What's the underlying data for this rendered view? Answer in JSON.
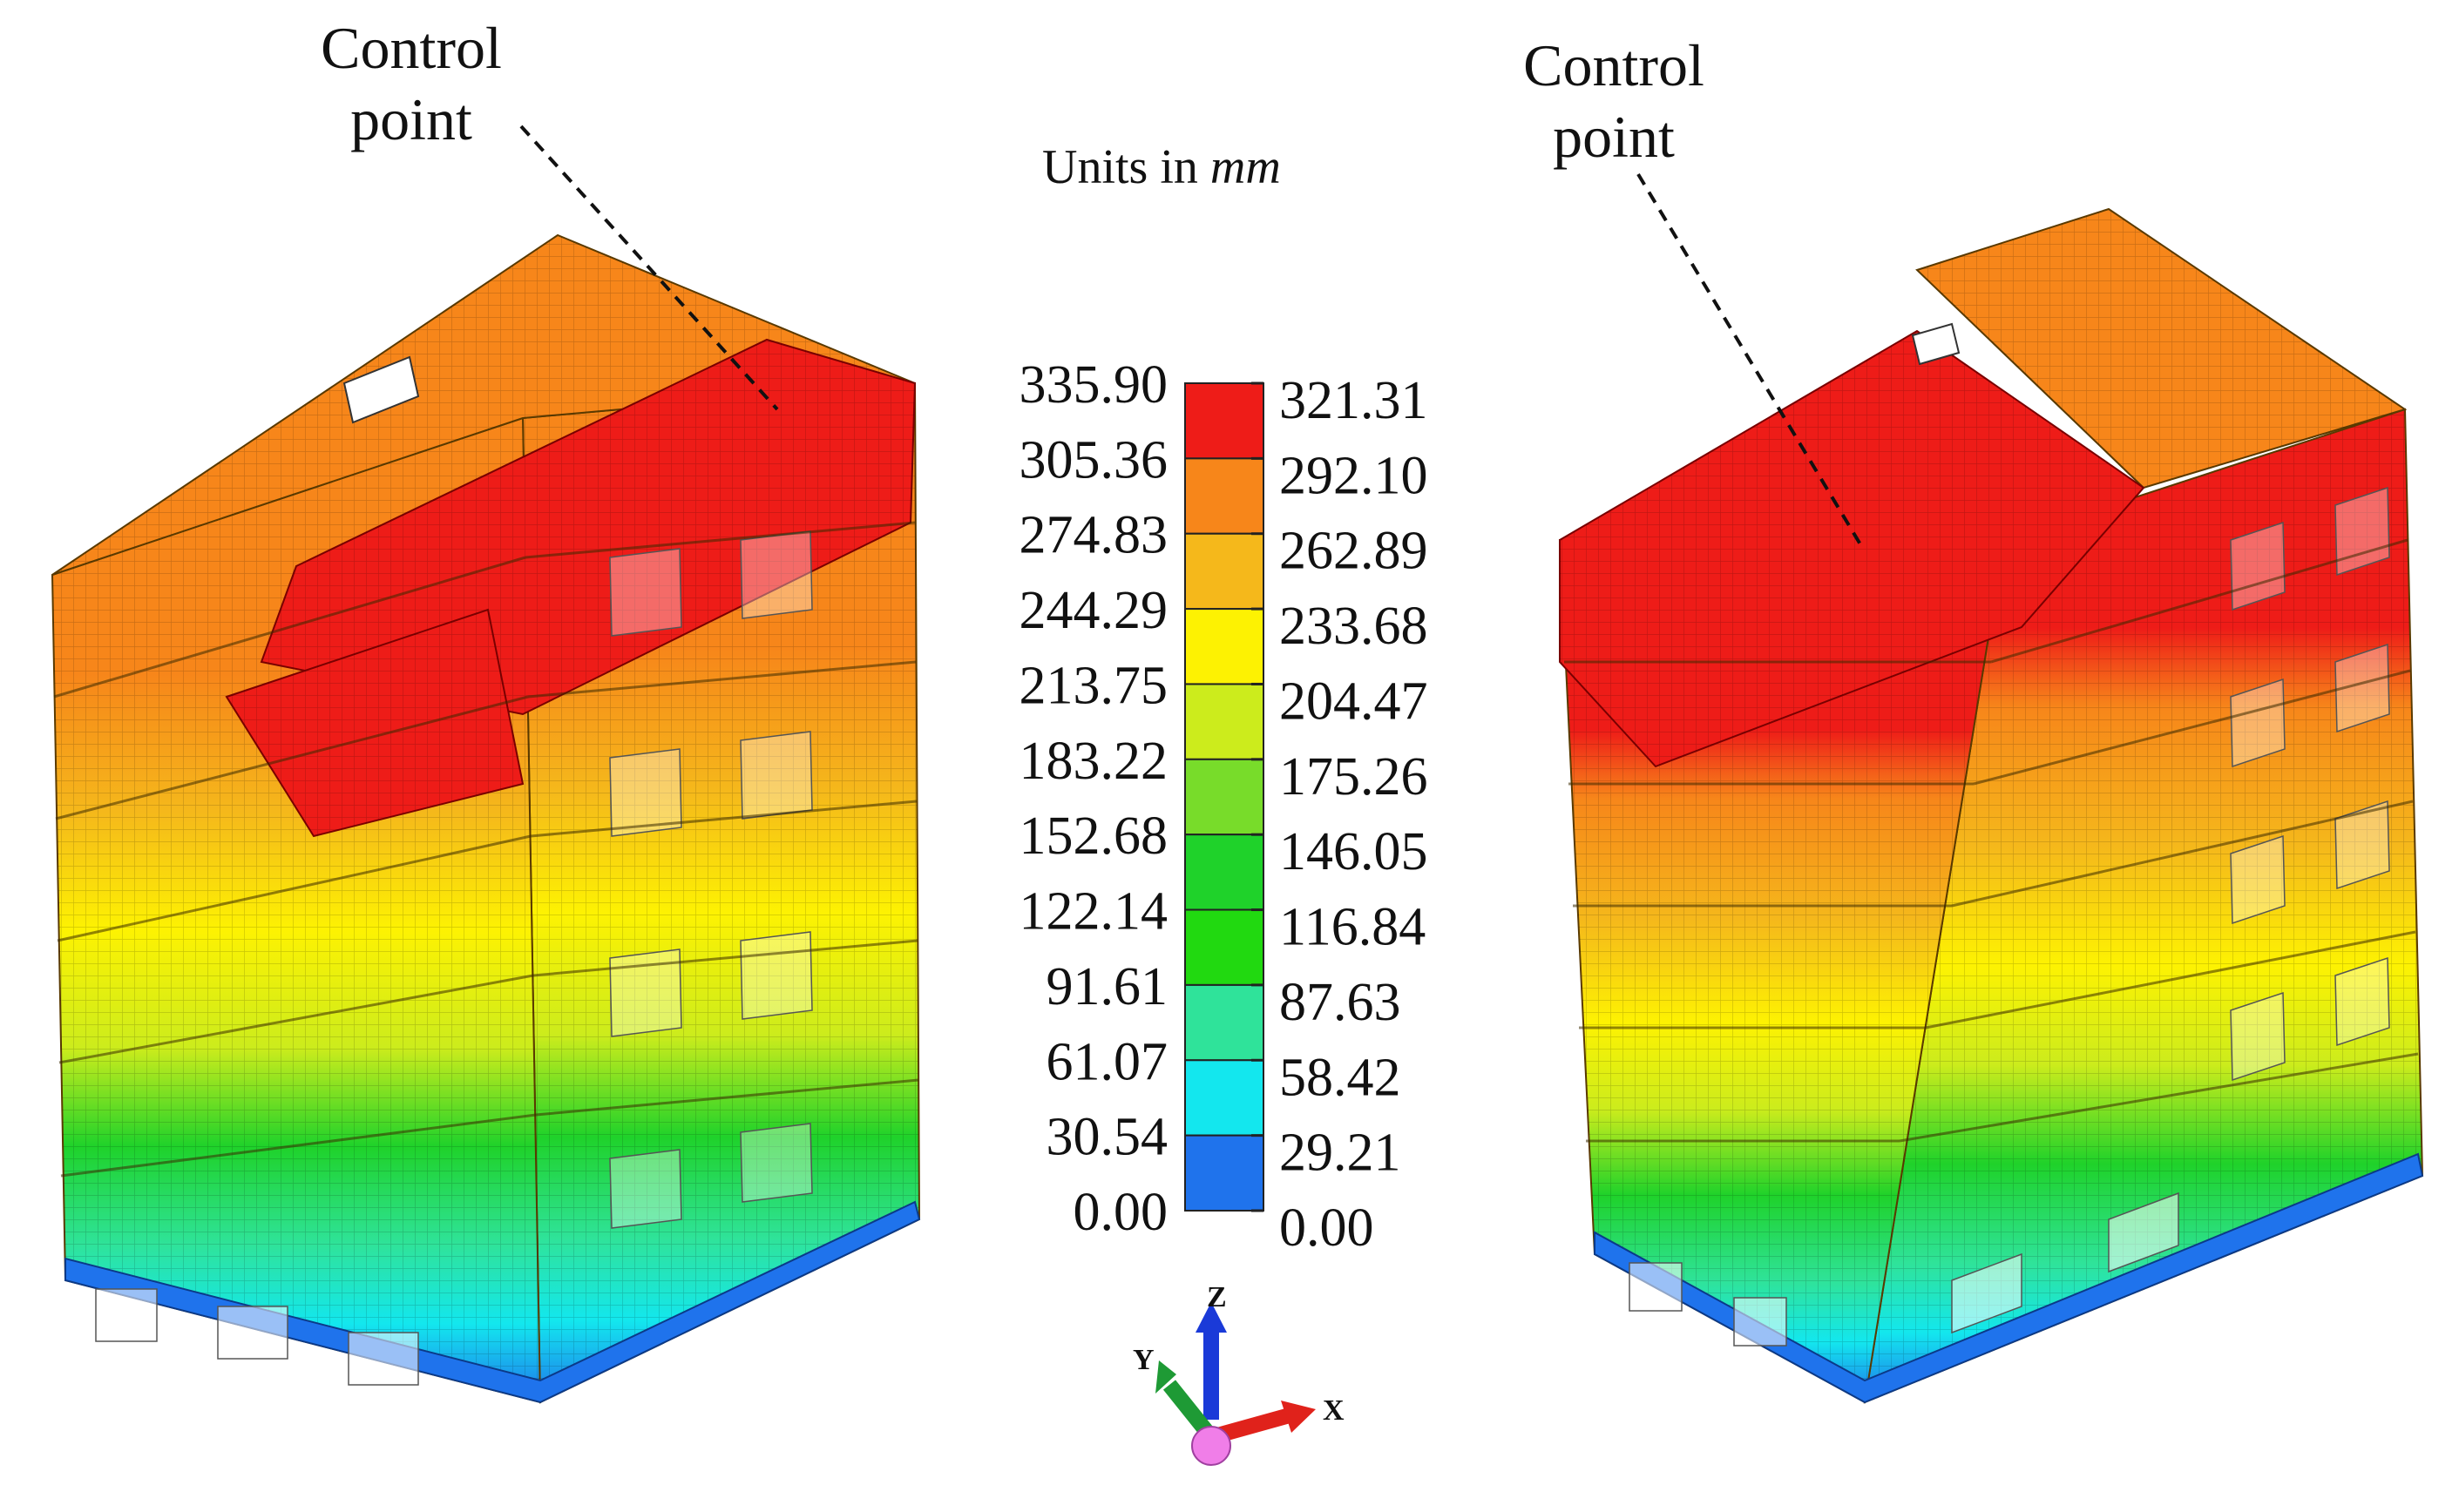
{
  "units": {
    "prefix": "Units in ",
    "unit": "mm"
  },
  "left_model": {
    "control_label": [
      "Control",
      "point"
    ]
  },
  "right_model": {
    "control_label": [
      "Control",
      "point"
    ]
  },
  "colorbar": {
    "colors": [
      "#ee1c18",
      "#f7861a",
      "#f5b81b",
      "#fdf202",
      "#ccec1c",
      "#78dc2a",
      "#1fd22a",
      "#21d910",
      "#2fe39a",
      "#13e7ee",
      "#1f73ec"
    ],
    "left_ticks": [
      "335.90",
      "305.36",
      "274.83",
      "244.29",
      "213.75",
      "183.22",
      "152.68",
      "122.14",
      "91.61",
      "61.07",
      "30.54",
      "0.00"
    ],
    "right_ticks": [
      "321.31",
      "292.10",
      "262.89",
      "233.68",
      "204.47",
      "175.26",
      "146.05",
      "116.84",
      "87.63",
      "58.42",
      "29.21",
      "0.00"
    ]
  },
  "axes": {
    "z": "Z",
    "y": "Y",
    "x": "X"
  }
}
